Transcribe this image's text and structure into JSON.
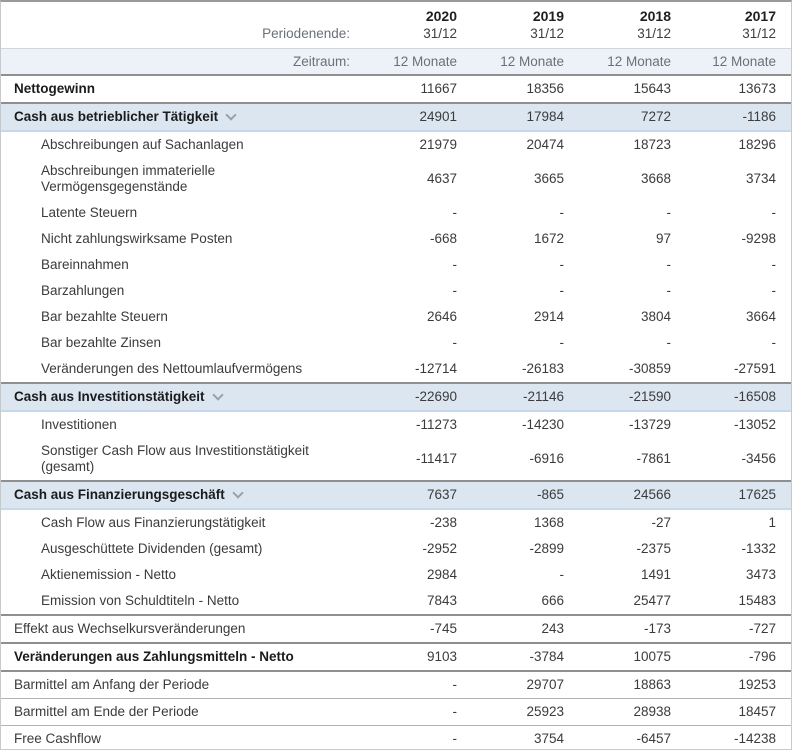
{
  "header": {
    "period_label": "Periodenende:",
    "periods": [
      {
        "year": "2020",
        "date": "31/12"
      },
      {
        "year": "2019",
        "date": "31/12"
      },
      {
        "year": "2018",
        "date": "31/12"
      },
      {
        "year": "2017",
        "date": "31/12"
      }
    ],
    "zeitraum_label": "Zeitraum:",
    "zeitraum_values": [
      "12 Monate",
      "12 Monate",
      "12 Monate",
      "12 Monate"
    ]
  },
  "colors": {
    "section_bg": "#dce6f1",
    "zeitraum_bg": "#edf2f8",
    "divider_dark": "#8f8f8f",
    "divider_light": "#b3b3b3",
    "section_bottom_border": "#c6d8e9"
  },
  "icons": {
    "section_expander": "chevron-down-icon"
  },
  "table": {
    "rows": [
      {
        "label": "Nettogewinn",
        "style": "bold",
        "divider": "none",
        "values": [
          "11667",
          "18356",
          "15643",
          "13673"
        ]
      },
      {
        "label": "Cash aus betrieblicher Tätigkeit",
        "style": "section",
        "expandable": true,
        "values": [
          "24901",
          "17984",
          "7272",
          "-1186"
        ]
      },
      {
        "label": "Abschreibungen auf Sachanlagen",
        "style": "sub",
        "values": [
          "21979",
          "20474",
          "18723",
          "18296"
        ]
      },
      {
        "label": "Abschreibungen immaterielle Vermögensgegenstände",
        "style": "sub",
        "values": [
          "4637",
          "3665",
          "3668",
          "3734"
        ]
      },
      {
        "label": "Latente Steuern",
        "style": "sub",
        "values": [
          "-",
          "-",
          "-",
          "-"
        ]
      },
      {
        "label": "Nicht zahlungswirksame Posten",
        "style": "sub",
        "values": [
          "-668",
          "1672",
          "97",
          "-9298"
        ]
      },
      {
        "label": "Bareinnahmen",
        "style": "sub",
        "values": [
          "-",
          "-",
          "-",
          "-"
        ]
      },
      {
        "label": "Barzahlungen",
        "style": "sub",
        "values": [
          "-",
          "-",
          "-",
          "-"
        ]
      },
      {
        "label": "Bar bezahlte Steuern",
        "style": "sub",
        "values": [
          "2646",
          "2914",
          "3804",
          "3664"
        ]
      },
      {
        "label": "Bar bezahlte Zinsen",
        "style": "sub",
        "values": [
          "-",
          "-",
          "-",
          "-"
        ]
      },
      {
        "label": "Veränderungen des Nettoumlaufvermögens",
        "style": "sub",
        "values": [
          "-12714",
          "-26183",
          "-30859",
          "-27591"
        ]
      },
      {
        "label": "Cash aus Investitionstätigkeit",
        "style": "section",
        "expandable": true,
        "values": [
          "-22690",
          "-21146",
          "-21590",
          "-16508"
        ]
      },
      {
        "label": "Investitionen",
        "style": "sub",
        "values": [
          "-11273",
          "-14230",
          "-13729",
          "-13052"
        ]
      },
      {
        "label": "Sonstiger Cash Flow aus Investitionstätigkeit (gesamt)",
        "style": "sub",
        "values": [
          "-11417",
          "-6916",
          "-7861",
          "-3456"
        ]
      },
      {
        "label": "Cash aus Finanzierungsgeschäft",
        "style": "section",
        "expandable": true,
        "values": [
          "7637",
          "-865",
          "24566",
          "17625"
        ]
      },
      {
        "label": "Cash Flow aus Finanzierungstätigkeit",
        "style": "sub",
        "values": [
          "-238",
          "1368",
          "-27",
          "1"
        ]
      },
      {
        "label": "Ausgeschüttete Dividenden (gesamt)",
        "style": "sub",
        "values": [
          "-2952",
          "-2899",
          "-2375",
          "-1332"
        ]
      },
      {
        "label": "Aktienemission - Netto",
        "style": "sub",
        "values": [
          "2984",
          "-",
          "1491",
          "3473"
        ]
      },
      {
        "label": "Emission von Schuldtiteln - Netto",
        "style": "sub",
        "values": [
          "7843",
          "666",
          "25477",
          "15483"
        ]
      },
      {
        "label": "Effekt aus Wechselkursveränderungen",
        "style": "plain",
        "divider": "dark",
        "values": [
          "-745",
          "243",
          "-173",
          "-727"
        ]
      },
      {
        "label": "Veränderungen aus Zahlungsmitteln - Netto",
        "style": "bold",
        "divider": "dark",
        "values": [
          "9103",
          "-3784",
          "10075",
          "-796"
        ]
      },
      {
        "label": "Barmittel am Anfang der Periode",
        "style": "plain",
        "divider": "dark",
        "values": [
          "-",
          "29707",
          "18863",
          "19253"
        ]
      },
      {
        "label": "Barmittel am Ende der Periode",
        "style": "plain",
        "divider": "light",
        "values": [
          "-",
          "25923",
          "28938",
          "18457"
        ]
      },
      {
        "label": "Free Cashflow",
        "style": "plain",
        "divider": "light",
        "values": [
          "-",
          "3754",
          "-6457",
          "-14238"
        ]
      }
    ]
  }
}
